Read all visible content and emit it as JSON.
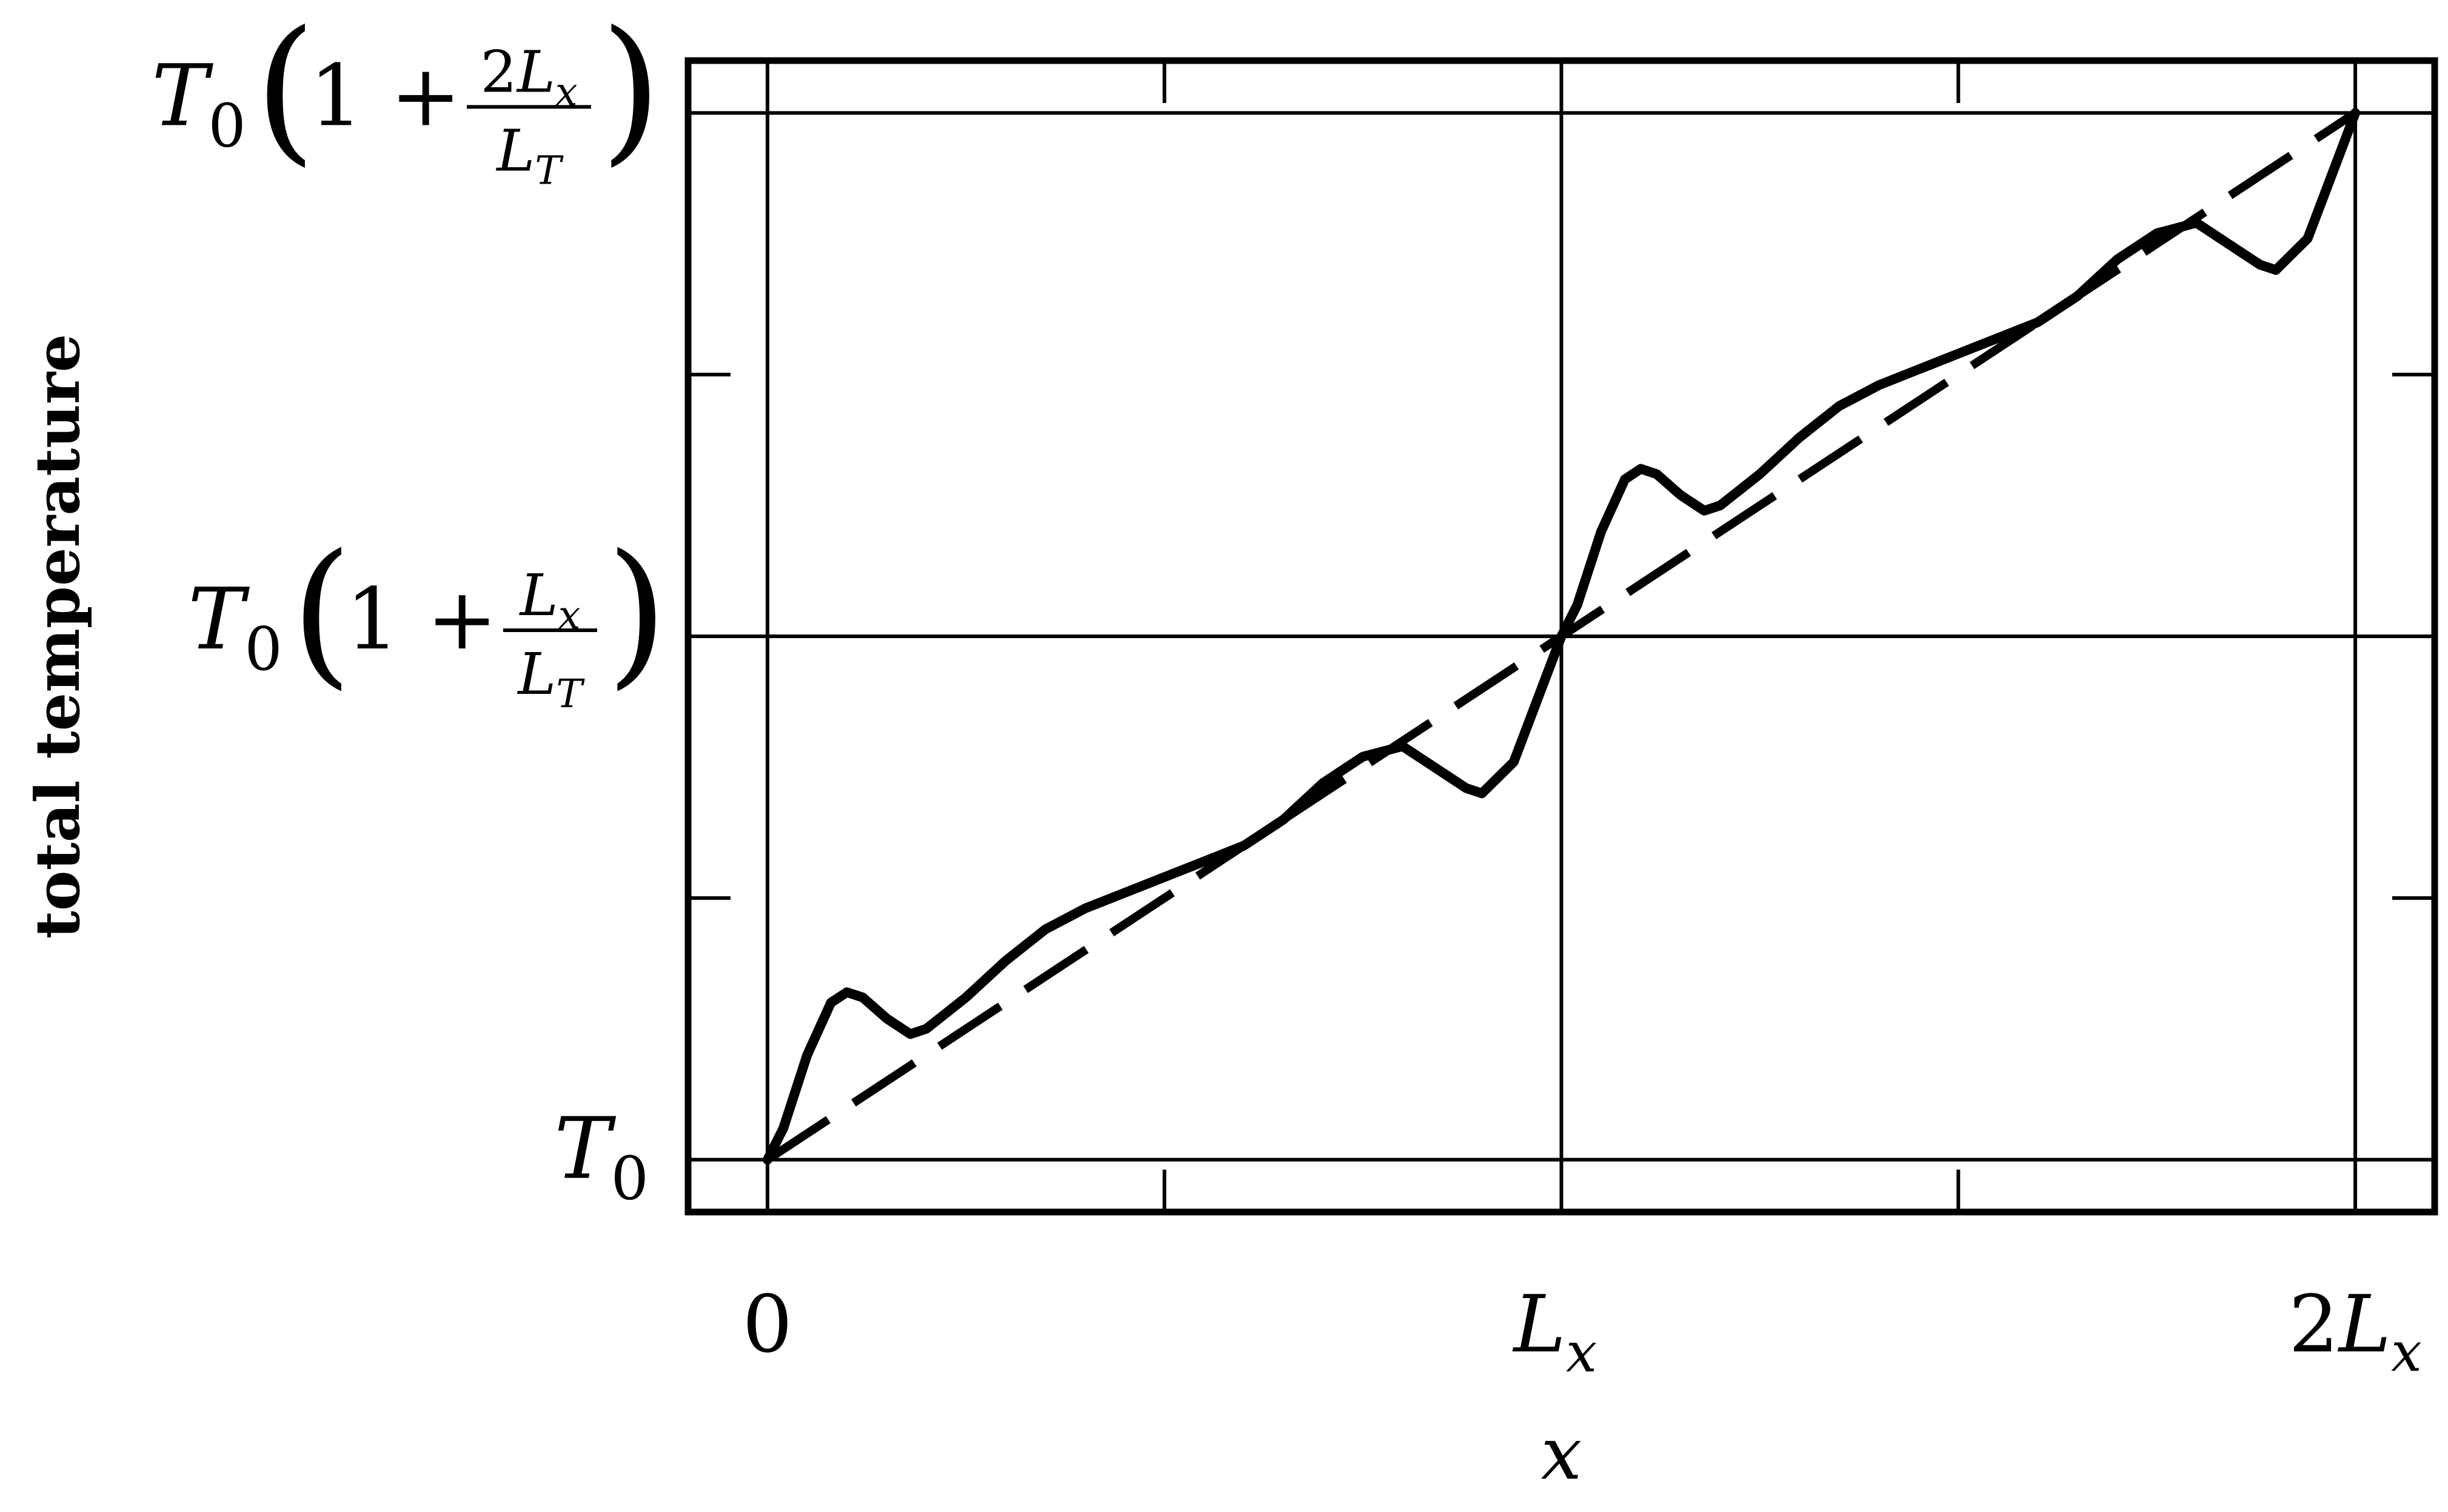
{
  "chart_data": {
    "type": "line",
    "xlabel": "x",
    "ylabel": "total temperature",
    "x_ticks": [
      {
        "value": 0,
        "label": "0"
      },
      {
        "value": 1,
        "label": "L_x"
      },
      {
        "value": 2,
        "label": "2L_x"
      }
    ],
    "y_ticks": [
      {
        "value": 0,
        "label": "T_0"
      },
      {
        "value": 1,
        "label": "T_0 (1 + L_x / L_T)"
      },
      {
        "value": 2,
        "label": "T_0 (1 + 2L_x / L_T)"
      }
    ],
    "xlim": [
      -0.1,
      2.1
    ],
    "ylim": [
      -0.1,
      2.1
    ],
    "grid": true,
    "series": [
      {
        "style": "solid",
        "x": [
          0.0,
          0.02,
          0.05,
          0.08,
          0.1,
          0.12,
          0.15,
          0.18,
          0.2,
          0.25,
          0.3,
          0.35,
          0.4,
          0.45,
          0.5,
          0.55,
          0.6,
          0.65,
          0.7,
          0.75,
          0.8,
          0.84,
          0.88,
          0.9,
          0.94,
          0.97,
          1.0,
          1.02,
          1.05,
          1.08,
          1.1,
          1.12,
          1.15,
          1.18,
          1.2,
          1.25,
          1.3,
          1.35,
          1.4,
          1.45,
          1.5,
          1.55,
          1.6,
          1.65,
          1.7,
          1.75,
          1.8,
          1.84,
          1.88,
          1.9,
          1.94,
          1.97,
          2.0
        ],
        "y": [
          0.0,
          0.06,
          0.2,
          0.3,
          0.32,
          0.31,
          0.27,
          0.24,
          0.25,
          0.31,
          0.38,
          0.44,
          0.48,
          0.51,
          0.54,
          0.57,
          0.6,
          0.65,
          0.72,
          0.77,
          0.79,
          0.75,
          0.71,
          0.7,
          0.76,
          0.88,
          1.0,
          1.06,
          1.2,
          1.3,
          1.32,
          1.31,
          1.27,
          1.24,
          1.25,
          1.31,
          1.38,
          1.44,
          1.48,
          1.51,
          1.54,
          1.57,
          1.6,
          1.65,
          1.72,
          1.77,
          1.79,
          1.75,
          1.71,
          1.7,
          1.76,
          1.88,
          2.0
        ]
      },
      {
        "style": "dashed",
        "x": [
          0,
          2
        ],
        "y": [
          0,
          2
        ]
      }
    ]
  }
}
